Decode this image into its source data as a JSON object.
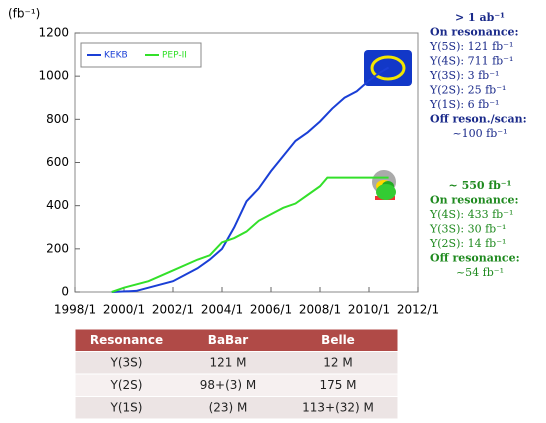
{
  "chart_data": {
    "type": "line",
    "y_label": "(fb⁻¹)",
    "xlim": [
      1998,
      2012
    ],
    "xticks": [
      {
        "value": 1998,
        "label": "1998/1"
      },
      {
        "value": 2000,
        "label": "2000/1"
      },
      {
        "value": 2002,
        "label": "2002/1"
      },
      {
        "value": 2004,
        "label": "2004/1"
      },
      {
        "value": 2006,
        "label": "2006/1"
      },
      {
        "value": 2008,
        "label": "2008/1"
      },
      {
        "value": 2010,
        "label": "2010/1"
      },
      {
        "value": 2012,
        "label": "2012/1"
      }
    ],
    "ylim": [
      0,
      1200
    ],
    "yticks": [
      0,
      200,
      400,
      600,
      800,
      1000,
      1200
    ],
    "legend": "top-left",
    "series": [
      {
        "name": "KEKB",
        "color": "#1a3fd6",
        "x": [
          1999.5,
          2000.5,
          2001,
          2002,
          2003,
          2003.5,
          2004,
          2004.5,
          2005,
          2005.5,
          2006,
          2006.5,
          2007,
          2007.5,
          2008,
          2008.5,
          2009,
          2009.5,
          2010,
          2010.5,
          2010.8
        ],
        "values": [
          0,
          5,
          20,
          50,
          110,
          150,
          200,
          300,
          420,
          480,
          560,
          630,
          700,
          740,
          790,
          850,
          900,
          930,
          980,
          1020,
          1040
        ]
      },
      {
        "name": "PEP-II",
        "color": "#33e02a",
        "x": [
          1999.5,
          2000,
          2001,
          2002,
          2003,
          2003.5,
          2004,
          2004.5,
          2005,
          2005.5,
          2006,
          2006.5,
          2007,
          2007.5,
          2008,
          2008.3,
          2010.8
        ],
        "values": [
          0,
          20,
          50,
          100,
          150,
          170,
          230,
          250,
          280,
          330,
          360,
          390,
          410,
          450,
          490,
          530,
          530
        ]
      }
    ],
    "annotations": [
      {
        "color": "#1a2a8a",
        "title": "> 1 ab⁻¹",
        "lines": [
          "On resonance:",
          "Υ(5S): 121 fb⁻¹",
          "Υ(4S): 711 fb⁻¹",
          "Υ(3S): 3 fb⁻¹",
          "Υ(2S): 25 fb⁻¹",
          "Υ(1S): 6 fb⁻¹",
          "Off reson./scan:",
          "~100 fb⁻¹"
        ]
      },
      {
        "color": "#1f8a1f",
        "title": "~ 550 fb⁻¹",
        "lines": [
          "On resonance:",
          "Υ(4S): 433 fb⁻¹",
          "Υ(3S): 30 fb⁻¹",
          "Υ(2S): 14 fb⁻¹",
          "Off resonance:",
          "~54 fb⁻¹"
        ]
      }
    ]
  },
  "table": {
    "header": [
      "Resonance",
      "BaBar",
      "Belle"
    ],
    "rows": [
      [
        "Υ(3S)",
        "121 M",
        "12 M"
      ],
      [
        "Υ(2S)",
        "98+(3) M",
        "175 M"
      ],
      [
        "Υ(1S)",
        "(23) M",
        "113+(32) M"
      ]
    ]
  }
}
